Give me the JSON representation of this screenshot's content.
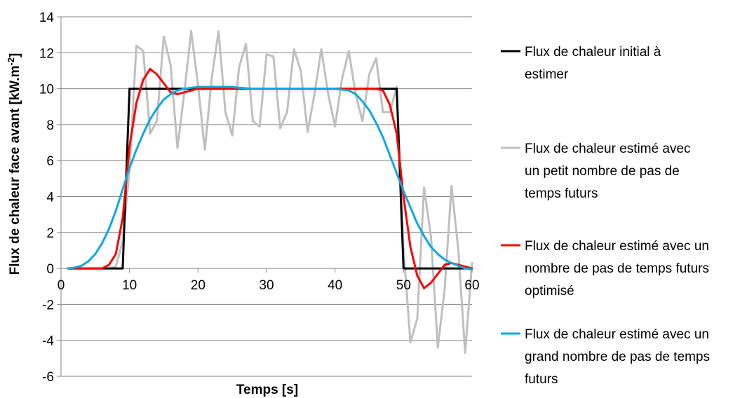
{
  "chart_data": {
    "type": "line",
    "title": "",
    "xlabel": "Temps [s]",
    "ylabel": "Flux de chaleur face avant [kW.m",
    "ylabel_sup": "-2",
    "ylabel_end": "]",
    "xlim": [
      0,
      60
    ],
    "ylim": [
      -6,
      14
    ],
    "xticks": [
      0,
      10,
      20,
      30,
      40,
      50,
      60
    ],
    "yticks": [
      -6,
      -4,
      -2,
      0,
      2,
      4,
      6,
      8,
      10,
      12,
      14
    ],
    "grid": true,
    "legend_position": "right",
    "series": [
      {
        "name": "Flux de chaleur initial à estimer",
        "legend_lines": [
          "Flux de chaleur initial à",
          "estimer"
        ],
        "color": "#000000",
        "x": [
          1,
          9,
          10,
          49,
          50,
          60
        ],
        "y": [
          0,
          0,
          10,
          10,
          0,
          0
        ]
      },
      {
        "name": "Flux de chaleur estimé avec un petit nombre de pas de temps futurs",
        "legend_lines": [
          "Flux de chaleur estimé avec",
          "un petit nombre de pas de",
          "temps futurs"
        ],
        "color": "#bfbfbf",
        "x": [
          1,
          2,
          3,
          4,
          5,
          6,
          7,
          8,
          9,
          10,
          11,
          12,
          13,
          14,
          15,
          16,
          17,
          18,
          19,
          20,
          21,
          22,
          23,
          24,
          25,
          26,
          27,
          28,
          29,
          30,
          31,
          32,
          33,
          34,
          35,
          36,
          37,
          38,
          39,
          40,
          41,
          42,
          43,
          44,
          45,
          46,
          47,
          48,
          49,
          50,
          51,
          52,
          53,
          54,
          55,
          56,
          57,
          58,
          59,
          60
        ],
        "y": [
          0,
          0,
          0,
          0,
          0,
          0,
          0,
          0.1,
          1.5,
          5.5,
          12.4,
          12.1,
          7.5,
          8.2,
          12.9,
          11.3,
          6.7,
          9.8,
          13.2,
          10.2,
          6.6,
          10.6,
          13.2,
          8.7,
          7.4,
          11.2,
          12.5,
          8.2,
          7.9,
          11.9,
          11.8,
          7.8,
          8.7,
          12.2,
          11,
          7.6,
          9.7,
          12.2,
          9.7,
          7.9,
          10.5,
          12.1,
          9.7,
          8.2,
          10.8,
          11.7,
          8.7,
          8.7,
          10.1,
          1.1,
          -4.1,
          -2.8,
          4.5,
          1.8,
          -4.4,
          -1.2,
          4.6,
          1,
          -4.7,
          0.3
        ]
      },
      {
        "name": "Flux de chaleur estimé avec un nombre de pas de temps futurs optimisé",
        "legend_lines": [
          "Flux de chaleur estimé avec un",
          "nombre de pas de temps futurs",
          "optimisé"
        ],
        "color": "#ff0000",
        "x": [
          1,
          2,
          3,
          4,
          5,
          6,
          7,
          8,
          9,
          10,
          11,
          12,
          13,
          14,
          15,
          16,
          17,
          18,
          19,
          20,
          22,
          25,
          30,
          35,
          40,
          44,
          45,
          46,
          47,
          48,
          49,
          50,
          51,
          52,
          53,
          54,
          55,
          56,
          57,
          58,
          59,
          60
        ],
        "y": [
          0,
          0,
          0,
          0,
          0,
          0,
          0.2,
          0.8,
          2.8,
          6.8,
          9.2,
          10.5,
          11.1,
          10.8,
          10.3,
          9.8,
          9.7,
          9.8,
          9.9,
          10,
          10,
          10,
          10,
          10,
          10,
          10,
          10,
          10,
          9.9,
          9.1,
          7.5,
          4,
          1.2,
          -0.4,
          -1.1,
          -0.8,
          -0.3,
          0.2,
          0.3,
          0.2,
          0.1,
          0
        ]
      },
      {
        "name": "Flux de chaleur estimé avec un grand nombre de pas de temps futurs",
        "legend_lines": [
          "Flux de chaleur estimé avec un",
          "grand nombre de pas de temps",
          "futurs"
        ],
        "color": "#0fa8e0",
        "x": [
          1,
          2,
          3,
          4,
          5,
          6,
          7,
          8,
          9,
          10,
          11,
          12,
          13,
          14,
          15,
          16,
          17,
          18,
          19,
          20,
          21,
          22,
          23,
          24,
          25,
          26,
          28,
          30,
          32,
          34,
          36,
          38,
          40,
          42,
          43,
          44,
          45,
          46,
          47,
          48,
          49,
          50,
          51,
          52,
          53,
          54,
          55,
          56,
          57,
          58,
          59,
          60
        ],
        "y": [
          0,
          0.05,
          0.15,
          0.4,
          0.8,
          1.4,
          2.2,
          3.2,
          4.4,
          5.6,
          6.6,
          7.5,
          8.3,
          8.9,
          9.4,
          9.7,
          9.9,
          10,
          10.05,
          10.1,
          10.1,
          10.1,
          10.1,
          10.1,
          10.1,
          10.05,
          10,
          10,
          10,
          10,
          10,
          10,
          10,
          9.9,
          9.7,
          9.3,
          8.8,
          8.1,
          7.3,
          6.3,
          5.3,
          4.3,
          3.4,
          2.5,
          1.8,
          1.2,
          0.8,
          0.5,
          0.3,
          0.15,
          0,
          -0.05
        ]
      }
    ]
  }
}
